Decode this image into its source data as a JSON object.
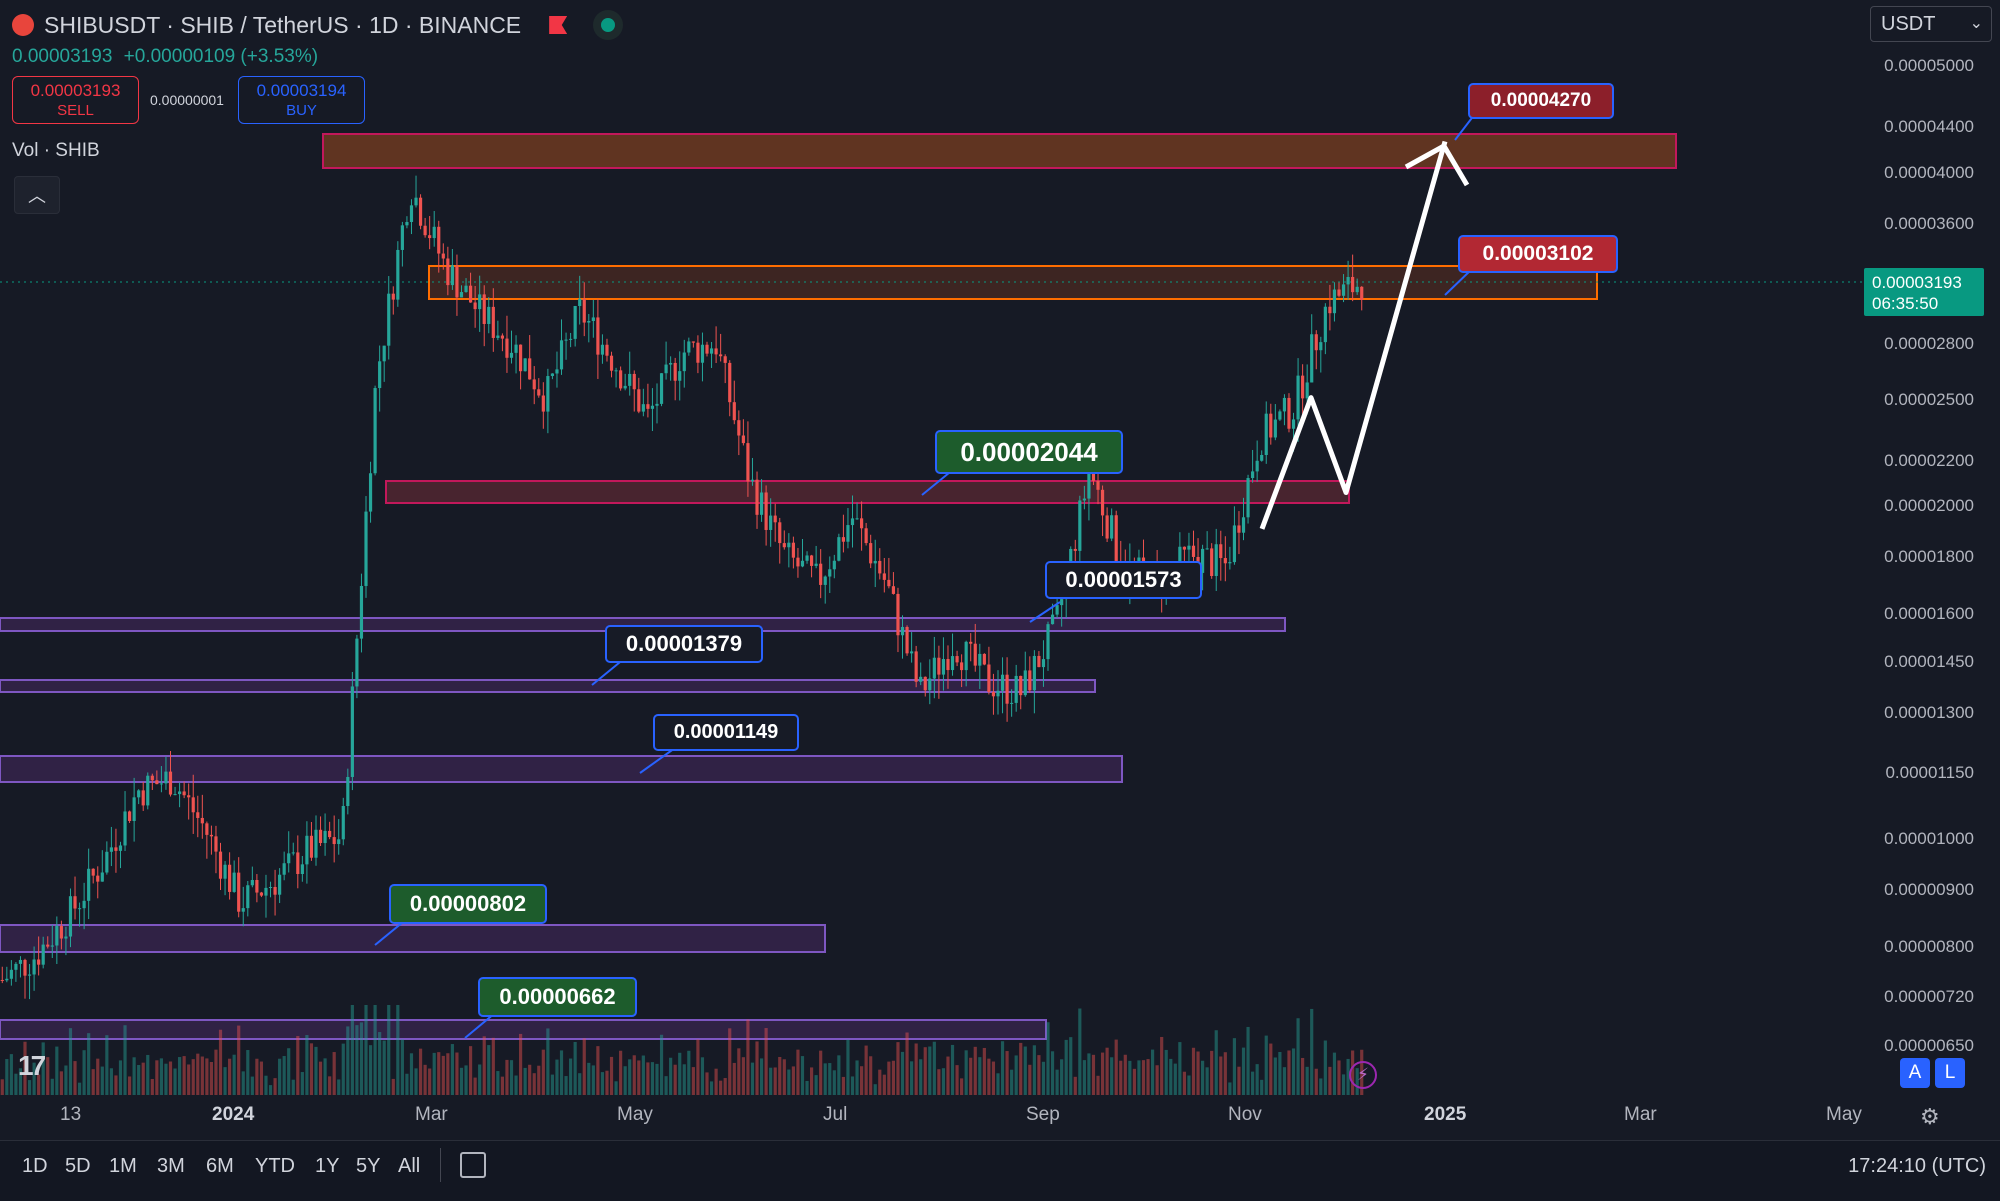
{
  "header": {
    "title": "SHIBUSDT · SHIB / TetherUS · 1D · BINANCE",
    "price": "0.00003193",
    "change": "+0.00000109 (+3.53%)"
  },
  "trade": {
    "sell_price": "0.00003193",
    "sell_label": "SELL",
    "spread": "0.00000001",
    "buy_price": "0.00003194",
    "buy_label": "BUY"
  },
  "volume_label": "Vol · SHIB",
  "currency": "USDT",
  "last_price": {
    "value": "0.00003193",
    "countdown": "06:35:50"
  },
  "chart_data": {
    "type": "candlestick",
    "symbol": "SHIBUSDT",
    "interval": "1D",
    "y_scale": "log",
    "y_ticks": [
      "0.00005000",
      "0.00004400",
      "0.00004000",
      "0.00003600",
      "0.00002800",
      "0.00002500",
      "0.00002200",
      "0.00002000",
      "0.00001800",
      "0.00001600",
      "0.00001450",
      "0.00001300",
      "0.00001150",
      "0.00001000",
      "0.00000900",
      "0.00000800",
      "0.00000720",
      "0.00000650"
    ],
    "x_ticks": [
      "13",
      "2024",
      "Mar",
      "May",
      "Jul",
      "Sep",
      "Nov",
      "2025",
      "Mar",
      "May"
    ],
    "bold_x_ticks": [
      "2024",
      "2025"
    ],
    "price_path": [
      7.4e-06,
      7.8e-06,
      8.5e-06,
      9.5e-06,
      1.1e-05,
      1.13e-05,
      1.01e-05,
      8.7e-06,
      9.1e-06,
      9.7e-06,
      1e-05,
      2.6e-05,
      3.9e-05,
      3.3e-05,
      3e-05,
      2.8e-05,
      2.5e-05,
      3e-05,
      2.7e-05,
      2.4e-05,
      2.75e-05,
      2.8e-05,
      2.1e-05,
      1.8e-05,
      1.7e-05,
      1.95e-05,
      1.7e-05,
      1.35e-05,
      1.5e-05,
      1.38e-05,
      1.35e-05,
      1.55e-05,
      2.15e-05,
      1.75e-05,
      1.7e-05,
      1.8e-05,
      1.76e-05,
      2.3e-05,
      2.45e-05,
      3.05e-05,
      3.19e-05
    ],
    "levels": [
      {
        "label": "0.00004270",
        "price": 4.27e-05
      },
      {
        "label": "0.00003102",
        "price": 3.102e-05
      },
      {
        "label": "0.00002044",
        "price": 2.044e-05
      },
      {
        "label": "0.00001573",
        "price": 1.573e-05
      },
      {
        "label": "0.00001379",
        "price": 1.379e-05
      },
      {
        "label": "0.00001149",
        "price": 1.149e-05
      },
      {
        "label": "0.00000802",
        "price": 8.02e-06
      },
      {
        "label": "0.00000662",
        "price": 6.62e-06
      }
    ],
    "projection": [
      1.9e-05,
      2.5e-05,
      2.05e-05,
      4.27e-05
    ]
  },
  "ranges": [
    "1D",
    "5D",
    "1M",
    "3M",
    "6M",
    "YTD",
    "1Y",
    "5Y",
    "All"
  ],
  "clock": "17:24:10 (UTC)",
  "icons": {
    "logo": "shib-logo-icon",
    "flag": "flag-icon",
    "status": "market-open-icon",
    "calendar": "calendar-icon",
    "settings": "gear-icon",
    "flash": "lightning-icon"
  },
  "buttons": {
    "auto": "A",
    "log": "L"
  },
  "colors": {
    "up": "#26a69a",
    "down": "#ef5350",
    "accent": "#2962ff"
  }
}
